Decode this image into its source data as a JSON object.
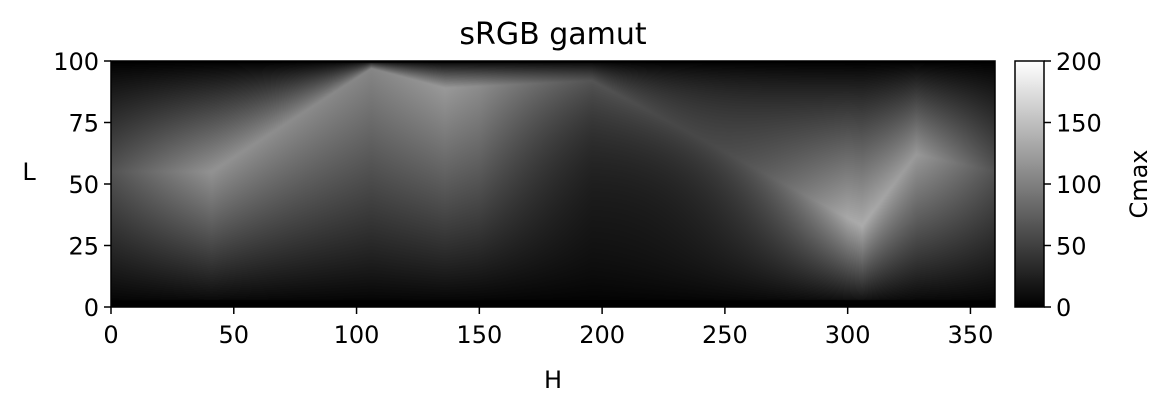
{
  "chart_data": {
    "type": "heatmap",
    "title": "sRGB gamut",
    "xlabel": "H",
    "ylabel": "L",
    "xlim": [
      0,
      360
    ],
    "ylim": [
      0,
      100
    ],
    "xticks": [
      "0",
      "50",
      "100",
      "150",
      "200",
      "250",
      "300",
      "350"
    ],
    "yticks": [
      "0",
      "25",
      "50",
      "75",
      "100"
    ],
    "colorbar": {
      "label": "Cmax",
      "range": [
        0,
        200
      ],
      "ticks": [
        "0",
        "50",
        "100",
        "150",
        "200"
      ],
      "colormap": "gray"
    },
    "cusps": [
      {
        "h": 0,
        "l": 55,
        "c": 65
      },
      {
        "h": 41,
        "l": 55,
        "c": 115
      },
      {
        "h": 106,
        "l": 97,
        "c": 105
      },
      {
        "h": 136,
        "l": 89,
        "c": 120
      },
      {
        "h": 196,
        "l": 92,
        "c": 75
      },
      {
        "h": 306,
        "l": 33,
        "c": 135
      },
      {
        "h": 328,
        "l": 62,
        "c": 120
      },
      {
        "h": 360,
        "l": 55,
        "c": 65
      }
    ],
    "grid": false
  }
}
